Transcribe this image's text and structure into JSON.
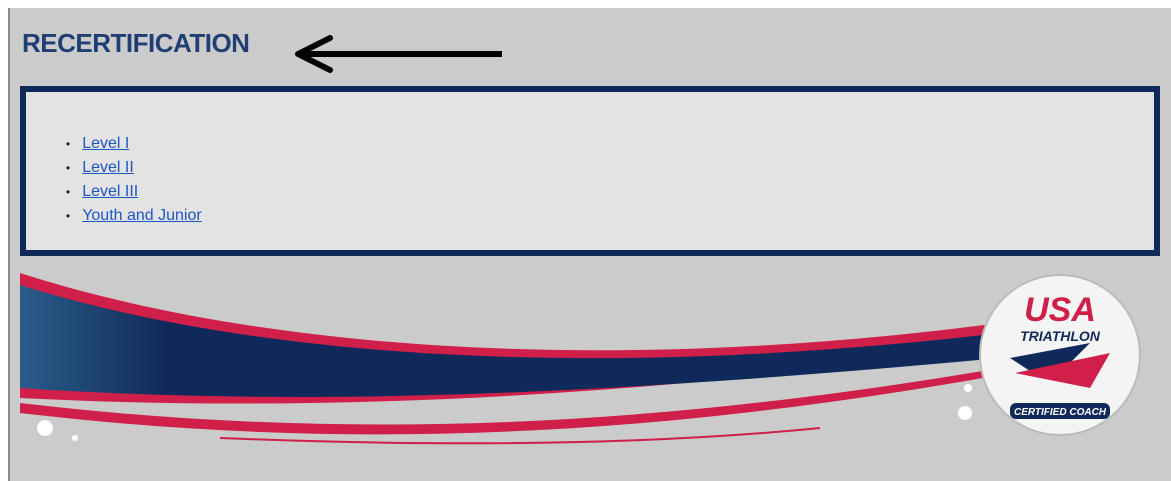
{
  "header": {
    "title": "RECERTIFICATION"
  },
  "links": [
    "Level I",
    "Level II",
    "Level III",
    "Youth and Junior"
  ],
  "logo": {
    "line1": "USA",
    "line2": "TRIATHLON",
    "badge": "CERTIFIED COACH"
  }
}
